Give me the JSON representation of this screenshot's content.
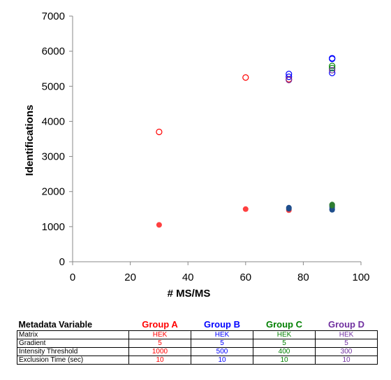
{
  "chart_data": {
    "type": "scatter",
    "xlabel": "# MS/MS",
    "ylabel": "Identifications",
    "xlim": [
      0,
      100
    ],
    "ylim": [
      0,
      7000
    ],
    "xticks": [
      0,
      20,
      40,
      60,
      80,
      100
    ],
    "yticks": [
      0,
      1000,
      2000,
      3000,
      4000,
      5000,
      6000,
      7000
    ],
    "grid": false,
    "series": [
      {
        "color": "#ff0000",
        "marker": "open",
        "points": [
          [
            30,
            3700
          ],
          [
            60,
            5250
          ],
          [
            75,
            5200
          ]
        ]
      },
      {
        "color": "#ff4040",
        "marker": "filled",
        "points": [
          [
            30,
            1050
          ],
          [
            60,
            1500
          ],
          [
            75,
            1470
          ]
        ]
      },
      {
        "color": "#0000ff",
        "marker": "open",
        "points": [
          [
            75,
            5350
          ],
          [
            75,
            5270
          ],
          [
            90,
            5800
          ],
          [
            90,
            5780
          ],
          [
            90,
            5380
          ]
        ]
      },
      {
        "color": "#008000",
        "marker": "open",
        "points": [
          [
            90,
            5580
          ],
          [
            90,
            5520
          ]
        ]
      },
      {
        "color": "#7030a0",
        "marker": "open",
        "points": [
          [
            75,
            5180
          ],
          [
            90,
            5460
          ]
        ]
      },
      {
        "color": "#1f4e8c",
        "marker": "filled",
        "points": [
          [
            75,
            1540
          ],
          [
            75,
            1510
          ],
          [
            90,
            1620
          ],
          [
            90,
            1580
          ],
          [
            90,
            1550
          ],
          [
            90,
            1500
          ],
          [
            90,
            1480
          ]
        ]
      },
      {
        "color": "#2e7d32",
        "marker": "filled",
        "points": [
          [
            90,
            1630
          ],
          [
            90,
            1600
          ]
        ]
      }
    ]
  },
  "metadata_table": {
    "header": "Metadata Variable",
    "groups": [
      {
        "name": "Group A",
        "color": "#ff0000",
        "values": [
          "HEK",
          "5",
          "1000",
          "10"
        ]
      },
      {
        "name": "Group B",
        "color": "#0000ff",
        "values": [
          "HEK",
          "5",
          "500",
          "10"
        ]
      },
      {
        "name": "Group C",
        "color": "#008000",
        "values": [
          "HEK",
          "5",
          "400",
          "10"
        ]
      },
      {
        "name": "Group D",
        "color": "#7030a0",
        "values": [
          "HEK",
          "5",
          "300",
          "10"
        ]
      }
    ],
    "rows": [
      "Matrix",
      "Gradient",
      "Intensity Threshold",
      "Exclusion Time (sec)"
    ]
  }
}
